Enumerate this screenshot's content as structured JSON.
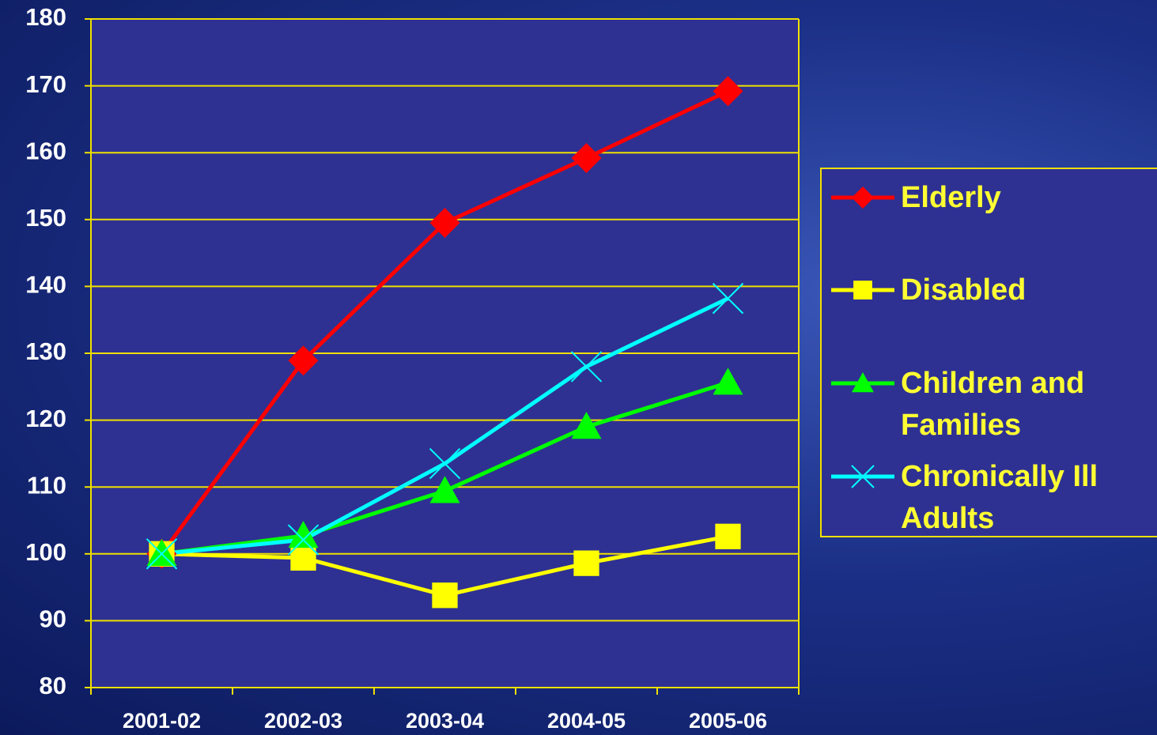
{
  "chart_data": {
    "type": "line",
    "categories": [
      "2001-02",
      "2002-03",
      "2003-04",
      "2004-05",
      "2005-06"
    ],
    "series": [
      {
        "name": "Elderly",
        "color": "#ff0000",
        "marker": "diamond",
        "values": [
          100,
          128.9,
          149.5,
          159.2,
          169.2
        ]
      },
      {
        "name": "Disabled",
        "color": "#ffff00",
        "marker": "square",
        "values": [
          100,
          99.4,
          93.8,
          98.6,
          102.6
        ]
      },
      {
        "name": "Children and Families",
        "color": "#00ff00",
        "marker": "triangle",
        "values": [
          100,
          102.7,
          109.4,
          119,
          125.6
        ]
      },
      {
        "name": "Chronically Ill Adults",
        "color": "#00ffff",
        "marker": "x",
        "values": [
          100,
          102.1,
          113.5,
          128,
          138.2
        ]
      }
    ],
    "ylim": [
      80,
      180
    ],
    "yticks": [
      80,
      90,
      100,
      110,
      120,
      130,
      140,
      150,
      160,
      170,
      180
    ],
    "grid": true
  }
}
